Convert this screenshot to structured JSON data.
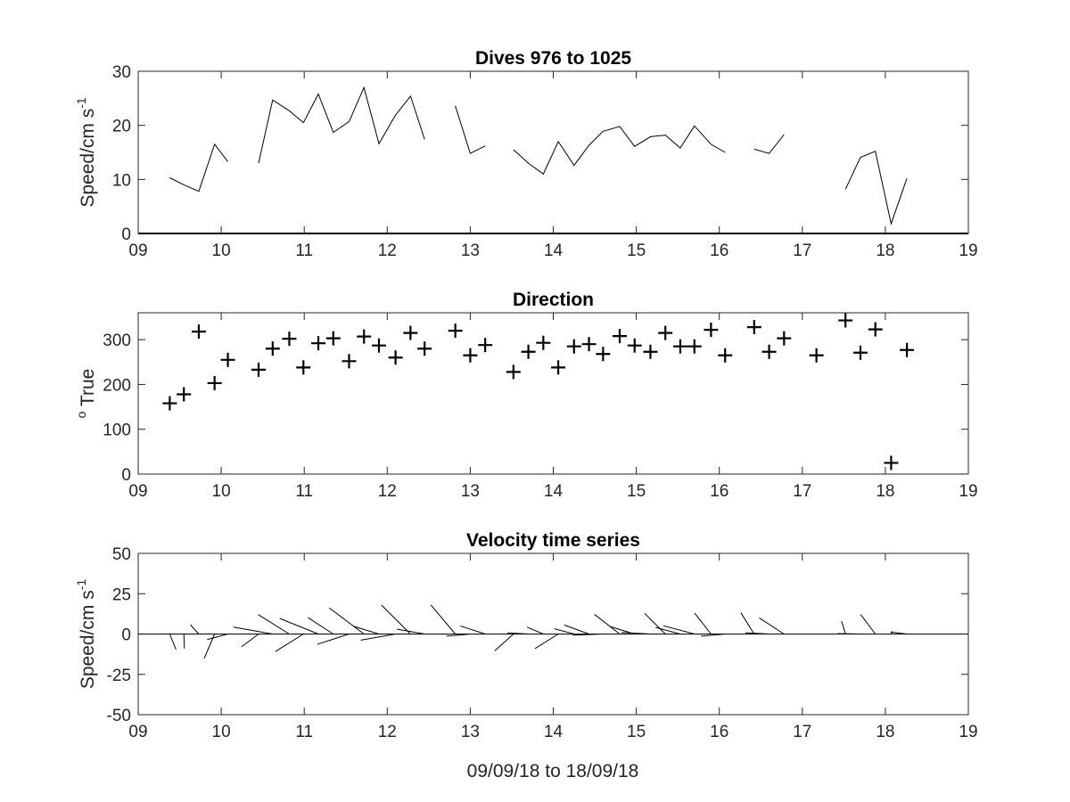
{
  "figure": {
    "xlabel": "09/09/18 to 18/09/18"
  },
  "chart_data": [
    {
      "type": "line",
      "title": "Dives 976 to 1025",
      "ylabel_text": "Speed/cm s",
      "ylabel_sup": "-1",
      "xlim": [
        9,
        19
      ],
      "ylim": [
        0,
        30
      ],
      "xticks": [
        "09",
        "10",
        "11",
        "12",
        "13",
        "14",
        "15",
        "16",
        "17",
        "18",
        "19"
      ],
      "yticks": [
        "0",
        "10",
        "20",
        "30"
      ],
      "ytick_values": [
        0,
        10,
        20,
        30
      ],
      "segments": [
        [
          [
            9.38,
            10.3
          ],
          [
            9.55,
            9.0
          ],
          [
            9.73,
            7.8
          ],
          [
            9.92,
            16.5
          ],
          [
            10.08,
            13.3
          ]
        ],
        [
          [
            10.45,
            13.0
          ],
          [
            10.62,
            24.7
          ],
          [
            10.82,
            22.7
          ],
          [
            10.99,
            20.5
          ],
          [
            11.17,
            25.8
          ],
          [
            11.35,
            18.7
          ],
          [
            11.54,
            20.7
          ],
          [
            11.72,
            27.0
          ],
          [
            11.9,
            16.6
          ],
          [
            12.1,
            21.9
          ],
          [
            12.28,
            25.4
          ],
          [
            12.45,
            17.4
          ]
        ],
        [
          [
            12.82,
            23.6
          ],
          [
            13.0,
            14.8
          ],
          [
            13.18,
            16.2
          ]
        ],
        [
          [
            13.52,
            15.5
          ],
          [
            13.7,
            13.0
          ],
          [
            13.88,
            11.0
          ],
          [
            14.06,
            17.0
          ],
          [
            14.25,
            12.6
          ],
          [
            14.43,
            16.3
          ],
          [
            14.6,
            18.9
          ],
          [
            14.8,
            19.8
          ],
          [
            14.98,
            16.1
          ],
          [
            15.17,
            17.9
          ],
          [
            15.35,
            18.2
          ],
          [
            15.53,
            15.8
          ],
          [
            15.7,
            19.9
          ],
          [
            15.9,
            16.5
          ],
          [
            16.07,
            15.0
          ]
        ],
        [
          [
            16.42,
            15.6
          ],
          [
            16.6,
            14.8
          ],
          [
            16.78,
            18.3
          ]
        ],
        [
          [
            17.52,
            8.2
          ],
          [
            17.7,
            14.1
          ],
          [
            17.88,
            15.2
          ],
          [
            18.07,
            1.8
          ],
          [
            18.26,
            10.2
          ]
        ]
      ]
    },
    {
      "type": "scatter",
      "marker": "+",
      "title": "Direction",
      "ylabel_text": "True",
      "ylabel_sup": "o",
      "xlim": [
        9,
        19
      ],
      "ylim": [
        0,
        360
      ],
      "xticks": [
        "09",
        "10",
        "11",
        "12",
        "13",
        "14",
        "15",
        "16",
        "17",
        "18",
        "19"
      ],
      "yticks": [
        "0",
        "100",
        "200",
        "300"
      ],
      "ytick_values": [
        0,
        100,
        200,
        300
      ],
      "points": [
        [
          9.38,
          158
        ],
        [
          9.55,
          178
        ],
        [
          9.73,
          318
        ],
        [
          9.92,
          203
        ],
        [
          10.08,
          255
        ],
        [
          10.45,
          233
        ],
        [
          10.62,
          280
        ],
        [
          10.82,
          302
        ],
        [
          10.99,
          238
        ],
        [
          11.17,
          292
        ],
        [
          11.35,
          303
        ],
        [
          11.54,
          252
        ],
        [
          11.72,
          307
        ],
        [
          11.9,
          287
        ],
        [
          12.1,
          260
        ],
        [
          12.28,
          315
        ],
        [
          12.45,
          280
        ],
        [
          12.82,
          320
        ],
        [
          13.0,
          265
        ],
        [
          13.18,
          288
        ],
        [
          13.52,
          228
        ],
        [
          13.7,
          273
        ],
        [
          13.88,
          293
        ],
        [
          14.06,
          238
        ],
        [
          14.25,
          285
        ],
        [
          14.43,
          290
        ],
        [
          14.6,
          268
        ],
        [
          14.8,
          308
        ],
        [
          14.98,
          287
        ],
        [
          15.17,
          273
        ],
        [
          15.35,
          315
        ],
        [
          15.53,
          285
        ],
        [
          15.7,
          285
        ],
        [
          15.9,
          322
        ],
        [
          16.07,
          265
        ],
        [
          16.42,
          328
        ],
        [
          16.6,
          273
        ],
        [
          16.78,
          303
        ],
        [
          17.17,
          265
        ],
        [
          17.52,
          343
        ],
        [
          17.7,
          271
        ],
        [
          17.88,
          323
        ],
        [
          18.07,
          25
        ],
        [
          18.26,
          277
        ]
      ]
    },
    {
      "type": "quiver",
      "title": "Velocity time series",
      "ylabel_text": "Speed/cm s",
      "ylabel_sup": "-1",
      "xlim": [
        9,
        19
      ],
      "ylim": [
        -50,
        50
      ],
      "xticks": [
        "09",
        "10",
        "11",
        "12",
        "13",
        "14",
        "15",
        "16",
        "17",
        "18",
        "19"
      ],
      "yticks": [
        "-50",
        "-25",
        "0",
        "25",
        "50"
      ],
      "ytick_values": [
        -50,
        -25,
        0,
        25,
        50
      ],
      "vectors": [
        [
          9.38,
          158,
          10.3
        ],
        [
          9.55,
          178,
          9.0
        ],
        [
          9.73,
          318,
          7.8
        ],
        [
          9.92,
          203,
          16.5
        ],
        [
          10.08,
          255,
          13.3
        ],
        [
          10.45,
          233,
          13.0
        ],
        [
          10.62,
          280,
          24.7
        ],
        [
          10.82,
          302,
          22.7
        ],
        [
          10.99,
          238,
          20.5
        ],
        [
          11.17,
          292,
          25.8
        ],
        [
          11.35,
          303,
          18.7
        ],
        [
          11.54,
          252,
          20.7
        ],
        [
          11.72,
          307,
          27.0
        ],
        [
          11.9,
          287,
          16.6
        ],
        [
          12.1,
          260,
          21.9
        ],
        [
          12.28,
          315,
          25.4
        ],
        [
          12.45,
          280,
          17.4
        ],
        [
          12.82,
          320,
          23.6
        ],
        [
          13.0,
          265,
          14.8
        ],
        [
          13.18,
          288,
          16.2
        ],
        [
          13.52,
          228,
          15.5
        ],
        [
          13.7,
          273,
          13.0
        ],
        [
          13.88,
          293,
          11.0
        ],
        [
          14.06,
          238,
          17.0
        ],
        [
          14.25,
          285,
          12.6
        ],
        [
          14.43,
          290,
          16.3
        ],
        [
          14.6,
          268,
          18.9
        ],
        [
          14.8,
          308,
          19.8
        ],
        [
          14.98,
          287,
          16.1
        ],
        [
          15.17,
          273,
          17.9
        ],
        [
          15.35,
          315,
          18.2
        ],
        [
          15.53,
          285,
          15.8
        ],
        [
          15.7,
          285,
          19.9
        ],
        [
          15.9,
          322,
          16.5
        ],
        [
          16.07,
          265,
          15.0
        ],
        [
          16.42,
          328,
          15.6
        ],
        [
          16.6,
          273,
          14.8
        ],
        [
          16.78,
          303,
          18.3
        ],
        [
          17.52,
          343,
          8.2
        ],
        [
          17.7,
          271,
          14.1
        ],
        [
          17.88,
          323,
          15.2
        ],
        [
          18.07,
          25,
          1.8
        ],
        [
          18.26,
          277,
          10.2
        ]
      ]
    }
  ]
}
